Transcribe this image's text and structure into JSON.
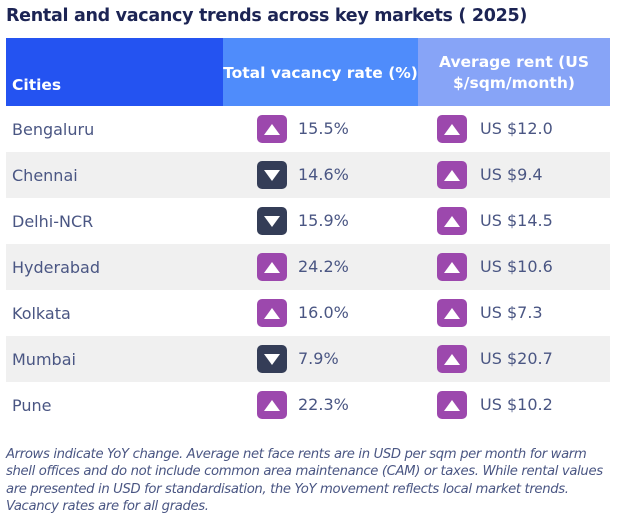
{
  "title": "Rental and vacancy trends across key markets ( 2025)",
  "table": {
    "headers": {
      "city": "Cities",
      "vacancy": "Total vacancy rate (%)",
      "rent": "Average rent (US $/sqm/month)"
    },
    "colors": {
      "header_city": "#2453f1",
      "header_vacancy": "#4f8cfb",
      "header_rent": "#87a4f7",
      "up": "#9c48ad",
      "down": "#343d57"
    },
    "rows": [
      {
        "city": "Bengaluru",
        "vacancy": "15.5%",
        "vacancy_trend": "up",
        "rent": "US $12.0",
        "rent_trend": "up"
      },
      {
        "city": "Chennai",
        "vacancy": "14.6%",
        "vacancy_trend": "down",
        "rent": "US $9.4",
        "rent_trend": "up"
      },
      {
        "city": "Delhi-NCR",
        "vacancy": "15.9%",
        "vacancy_trend": "down",
        "rent": "US $14.5",
        "rent_trend": "up"
      },
      {
        "city": "Hyderabad",
        "vacancy": "24.2%",
        "vacancy_trend": "up",
        "rent": "US $10.6",
        "rent_trend": "up"
      },
      {
        "city": "Kolkata",
        "vacancy": "16.0%",
        "vacancy_trend": "up",
        "rent": "US $7.3",
        "rent_trend": "up"
      },
      {
        "city": "Mumbai",
        "vacancy": "7.9%",
        "vacancy_trend": "down",
        "rent": "US $20.7",
        "rent_trend": "up"
      },
      {
        "city": "Pune",
        "vacancy": "22.3%",
        "vacancy_trend": "up",
        "rent": "US $10.2",
        "rent_trend": "up"
      }
    ]
  },
  "note": "Arrows indicate YoY change. Average net face rents are in USD per sqm per month for warm shell offices and do not include common area maintenance (CAM) or taxes. While rental values are presented in USD for standardisation, the YoY movement reflects local market trends. Vacancy rates are for all grades."
}
